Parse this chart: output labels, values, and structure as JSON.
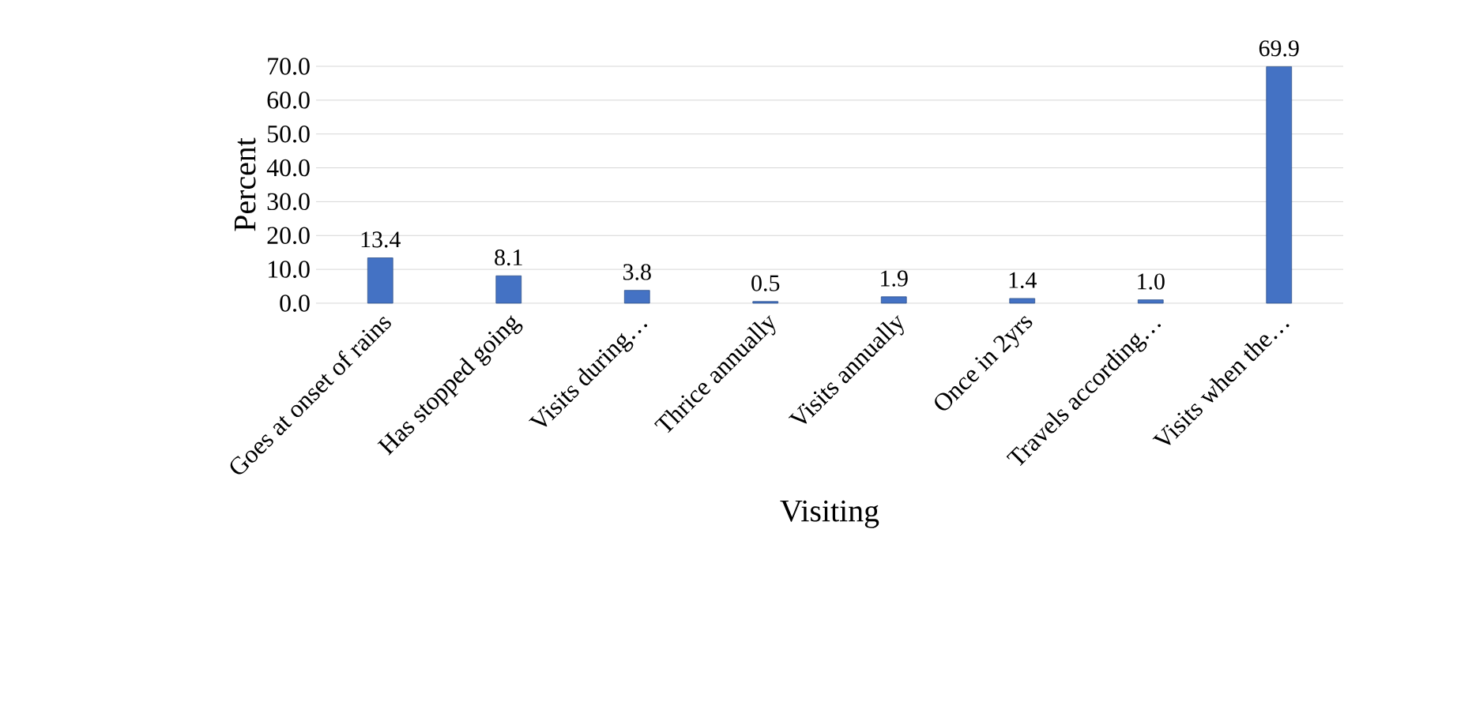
{
  "chart_data": {
    "type": "bar",
    "xlabel": "Visiting",
    "ylabel": "Percent",
    "categories": [
      "Goes at onset of rains",
      "Has stopped going",
      "Visits during…",
      "Thrice annually",
      "Visits annually",
      "Once in 2yrs",
      "Travels according…",
      "Visits when the…"
    ],
    "values": [
      13.4,
      8.1,
      3.8,
      0.5,
      1.9,
      1.4,
      1.0,
      69.9
    ],
    "value_labels": [
      "13.4",
      "8.1",
      "3.8",
      "0.5",
      "1.9",
      "1.4",
      "1.0",
      "69.9"
    ],
    "color": "#4472c4",
    "ylim": [
      0,
      70
    ],
    "yticks": [
      {
        "value": 0,
        "label": "0.0"
      },
      {
        "value": 10,
        "label": "10.0"
      },
      {
        "value": 20,
        "label": "20.0"
      },
      {
        "value": 30,
        "label": "30.0"
      },
      {
        "value": 40,
        "label": "40.0"
      },
      {
        "value": 50,
        "label": "50.0"
      },
      {
        "value": 60,
        "label": "60.0"
      },
      {
        "value": 70,
        "label": "70.0"
      }
    ],
    "grid": "y"
  }
}
